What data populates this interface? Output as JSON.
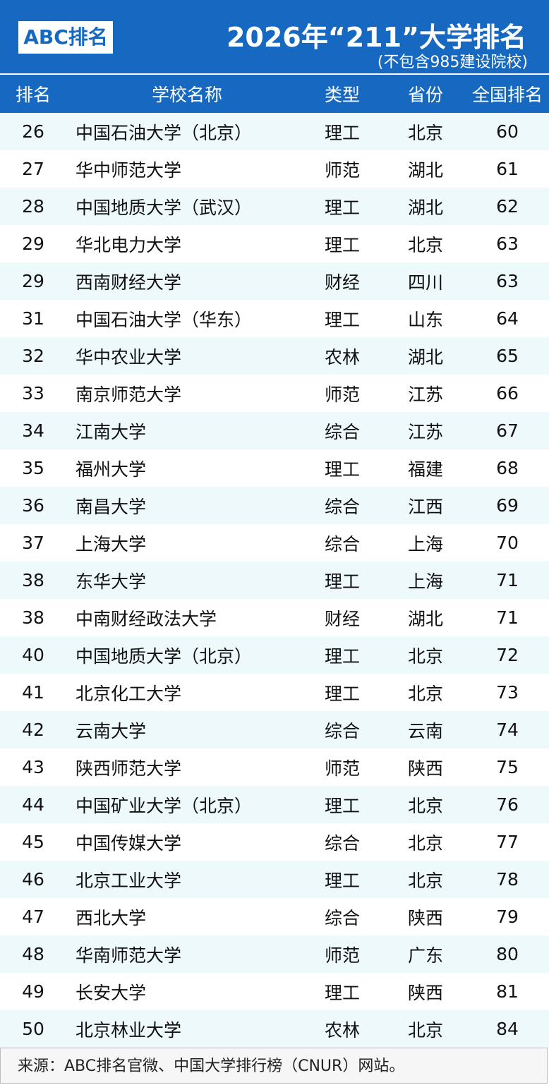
{
  "header": {
    "logo": "ABC排名",
    "title": "2026年“211”大学排名",
    "subtitle": "(不包含985建设院校)"
  },
  "table": {
    "columns": [
      "排名",
      "学校名称",
      "类型",
      "省份",
      "全国排名"
    ],
    "rows": [
      [
        26,
        "中国石油大学（北京）",
        "理工",
        "北京",
        60
      ],
      [
        27,
        "华中师范大学",
        "师范",
        "湖北",
        61
      ],
      [
        28,
        "中国地质大学（武汉）",
        "理工",
        "湖北",
        62
      ],
      [
        29,
        "华北电力大学",
        "理工",
        "北京",
        63
      ],
      [
        29,
        "西南财经大学",
        "财经",
        "四川",
        63
      ],
      [
        31,
        "中国石油大学（华东）",
        "理工",
        "山东",
        64
      ],
      [
        32,
        "华中农业大学",
        "农林",
        "湖北",
        65
      ],
      [
        33,
        "南京师范大学",
        "师范",
        "江苏",
        66
      ],
      [
        34,
        "江南大学",
        "综合",
        "江苏",
        67
      ],
      [
        35,
        "福州大学",
        "理工",
        "福建",
        68
      ],
      [
        36,
        "南昌大学",
        "综合",
        "江西",
        69
      ],
      [
        37,
        "上海大学",
        "综合",
        "上海",
        70
      ],
      [
        38,
        "东华大学",
        "理工",
        "上海",
        71
      ],
      [
        38,
        "中南财经政法大学",
        "财经",
        "湖北",
        71
      ],
      [
        40,
        "中国地质大学（北京）",
        "理工",
        "北京",
        72
      ],
      [
        41,
        "北京化工大学",
        "理工",
        "北京",
        73
      ],
      [
        42,
        "云南大学",
        "综合",
        "云南",
        74
      ],
      [
        43,
        "陕西师范大学",
        "师范",
        "陕西",
        75
      ],
      [
        44,
        "中国矿业大学（北京）",
        "理工",
        "北京",
        76
      ],
      [
        45,
        "中国传媒大学",
        "综合",
        "北京",
        77
      ],
      [
        46,
        "北京工业大学",
        "理工",
        "北京",
        78
      ],
      [
        47,
        "西北大学",
        "综合",
        "陕西",
        79
      ],
      [
        48,
        "华南师范大学",
        "师范",
        "广东",
        80
      ],
      [
        49,
        "长安大学",
        "理工",
        "陕西",
        81
      ],
      [
        50,
        "北京林业大学",
        "农林",
        "北京",
        84
      ]
    ]
  },
  "footer": {
    "source": "来源：ABC排名官微、中国大学排行榜（CNUR）网站。"
  }
}
